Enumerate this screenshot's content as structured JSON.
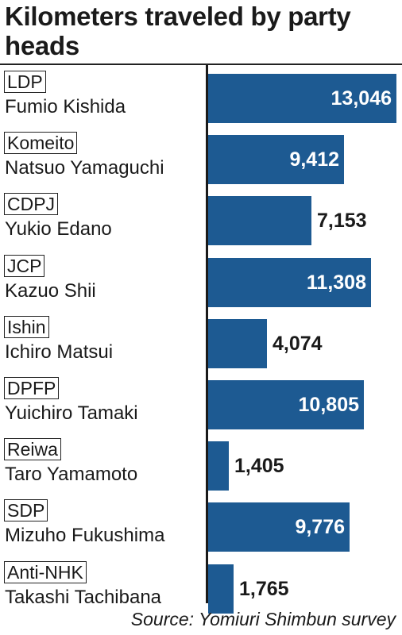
{
  "title": "Kilometers traveled by party heads",
  "source": "Source: Yomiuri Shimbun survey",
  "colors": {
    "bar": "#1d5a92",
    "text": "#1a1a1a"
  },
  "chart_data": {
    "type": "bar",
    "orientation": "horizontal",
    "title": "Kilometers traveled by party heads",
    "categories": [
      "LDP",
      "Komeito",
      "CDPJ",
      "JCP",
      "Ishin",
      "DPFP",
      "Reiwa",
      "SDP",
      "Anti-NHK"
    ],
    "leaders": [
      "Fumio Kishida",
      "Natsuo Yamaguchi",
      "Yukio Edano",
      "Kazuo Shii",
      "Ichiro Matsui",
      "Yuichiro Tamaki",
      "Taro Yamamoto",
      "Mizuho Fukushima",
      "Takashi Tachibana"
    ],
    "values": [
      13046,
      9412,
      7153,
      11308,
      4074,
      10805,
      1405,
      9776,
      1765
    ],
    "value_labels": [
      "13,046",
      "9,412",
      "7,153",
      "11,308",
      "4,074",
      "10,805",
      "1,405",
      "9,776",
      "1,765"
    ],
    "xlim": [
      0,
      13046
    ],
    "grid": false,
    "legend": "none"
  }
}
